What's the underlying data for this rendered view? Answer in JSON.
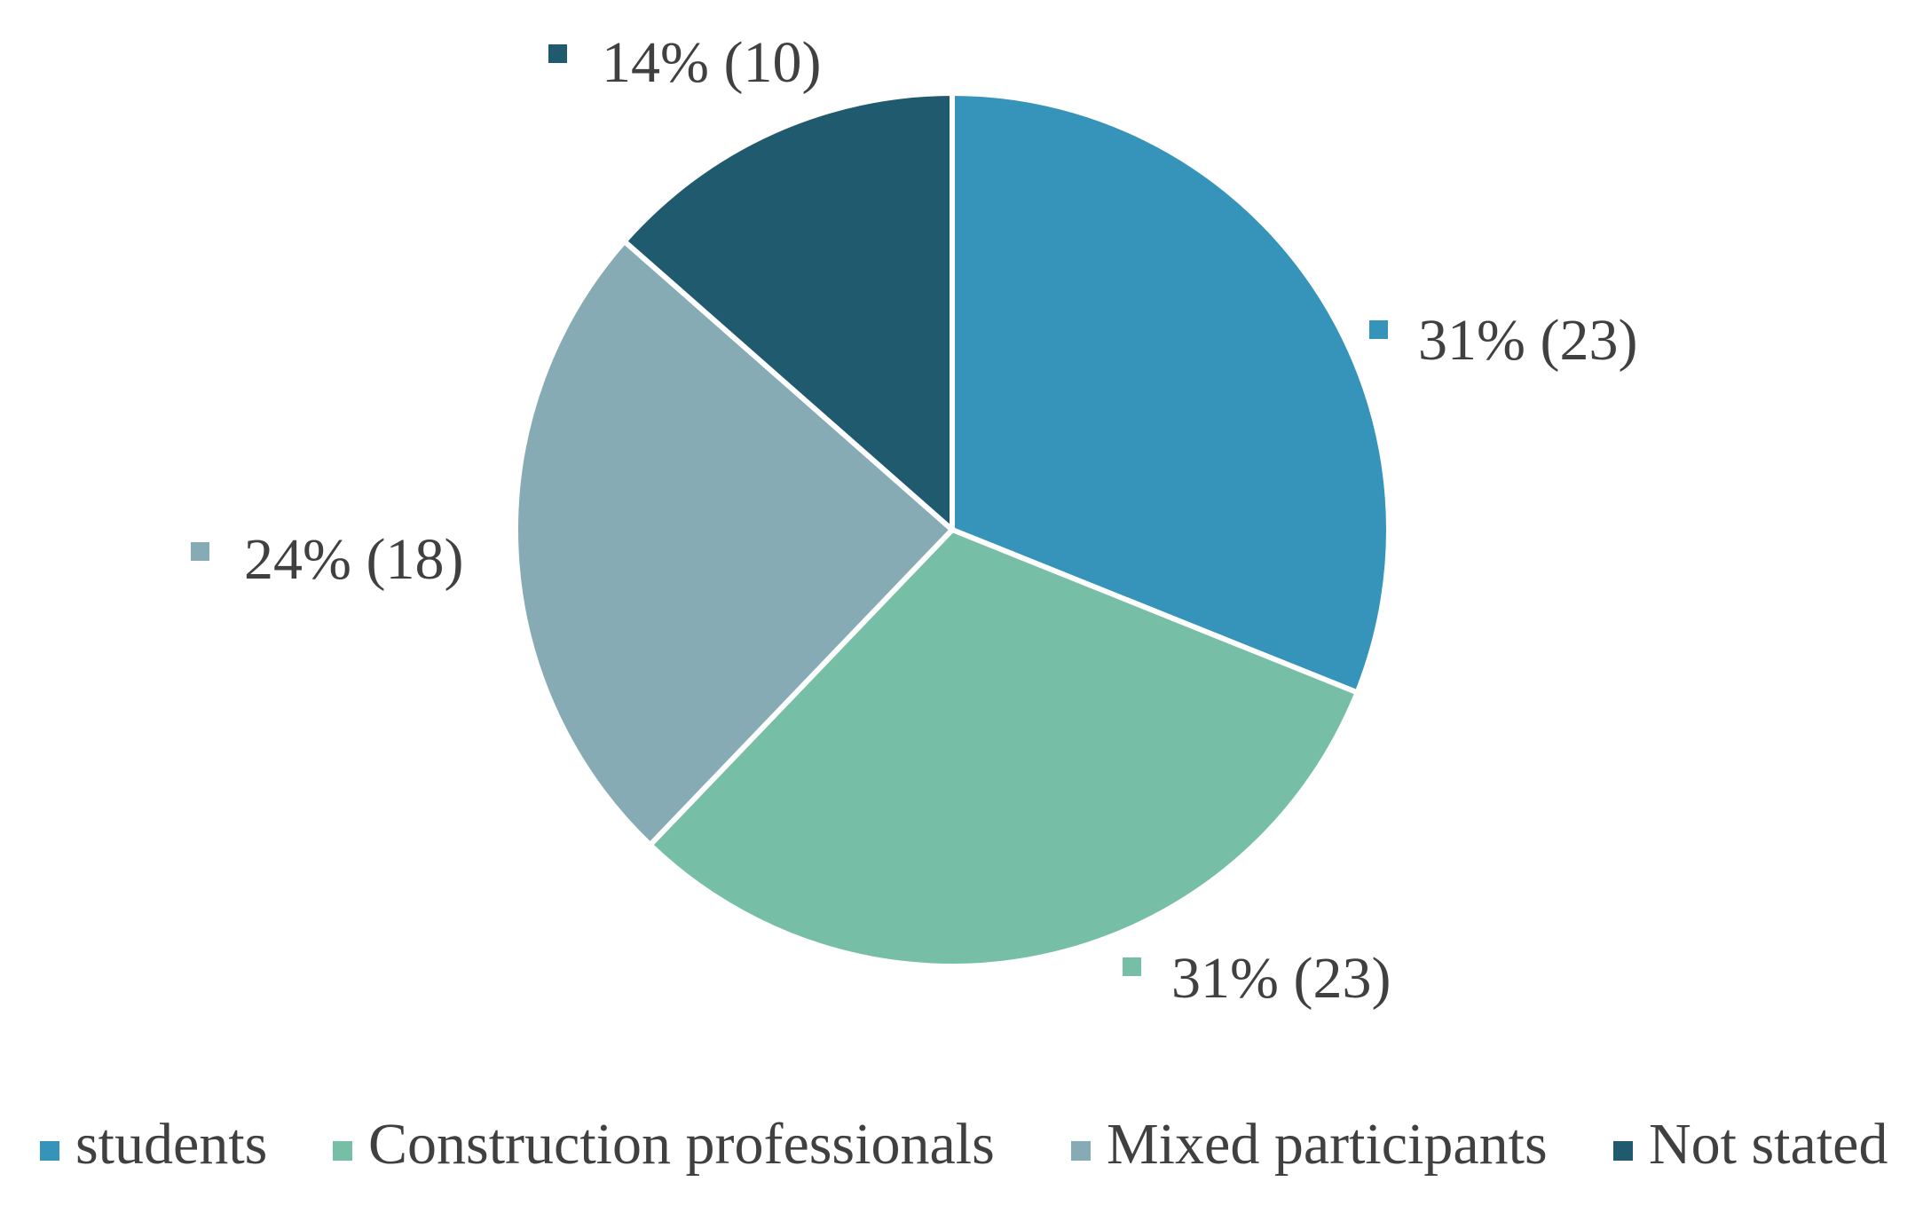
{
  "chart_data": {
    "type": "pie",
    "title": "",
    "legend_position": "bottom",
    "slices": [
      {
        "name": "students",
        "value": 23,
        "percent": 31,
        "label": "31% (23)",
        "color": "#3693BA"
      },
      {
        "name": "Construction professionals",
        "value": 23,
        "percent": 31,
        "label": "31% (23)",
        "color": "#77BEA7"
      },
      {
        "name": "Mixed participants",
        "value": 18,
        "percent": 24,
        "label": "24% (18)",
        "color": "#86ABB4"
      },
      {
        "name": "Not stated",
        "value": 10,
        "percent": 14,
        "label": "14% (10)",
        "color": "#205A6F"
      }
    ]
  }
}
